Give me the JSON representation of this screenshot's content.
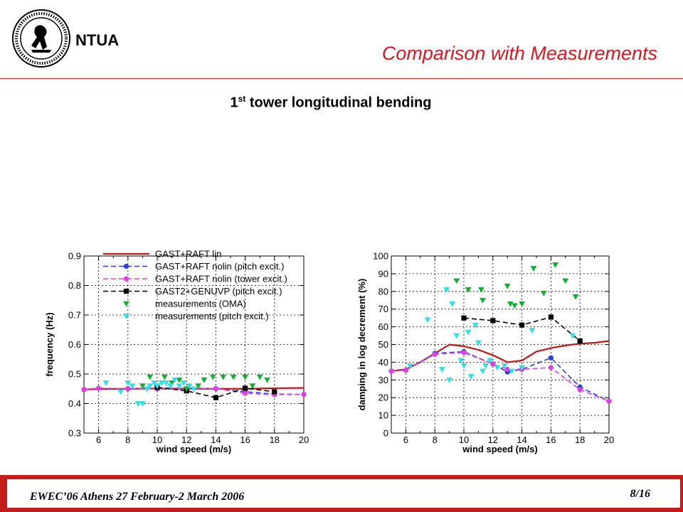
{
  "header": {
    "org": "NTUA",
    "title": "Comparison with Measurements",
    "subtitle_main": "1",
    "subtitle_sup": "st",
    "subtitle_rest": " tower longitudinal bending"
  },
  "footer": {
    "text": "EWEC’06 Athens 27 February-2 March 2006",
    "page": "8/16"
  },
  "colors": {
    "title": "#e0141c",
    "rule": "#c82828",
    "footer_bar": "#c41c18",
    "red_line": "#c41818",
    "blue": "#2a3fd8",
    "magenta": "#e040e0",
    "black": "#000000",
    "green": "#10b030",
    "cyan": "#30e0e8"
  },
  "chart_data": [
    {
      "type": "line",
      "xlabel": "wind speed (m/s)",
      "ylabel": "frequency (Hz)",
      "xlim": [
        5,
        20
      ],
      "ylim": [
        0.3,
        0.9
      ],
      "xticks": [
        6,
        8,
        10,
        12,
        14,
        16,
        18,
        20
      ],
      "yticks": [
        0.3,
        0.4,
        0.5,
        0.6,
        0.7,
        0.8,
        0.9
      ],
      "ytick_labels": [
        "0.3",
        "0.4",
        "0.5",
        "0.6",
        "0.7",
        "0.8",
        "0.9"
      ],
      "grid": true,
      "legend_position": "top",
      "series": [
        {
          "name": "GAST+RAFT lin",
          "kind": "line",
          "color": "#c41818",
          "dash": "",
          "x": [
            5,
            6,
            8,
            10,
            12,
            14,
            16,
            18,
            20
          ],
          "y": [
            0.448,
            0.449,
            0.45,
            0.451,
            0.451,
            0.45,
            0.45,
            0.452,
            0.453
          ]
        },
        {
          "name": "GAST+RAFT nolin (pitch excit.)",
          "kind": "line-marker",
          "marker": "circle",
          "color": "#2a3fd8",
          "dash": "7,4",
          "x": [
            5,
            6,
            8,
            10,
            12,
            14,
            16,
            18,
            20
          ],
          "y": [
            0.447,
            0.452,
            0.45,
            0.45,
            0.448,
            0.45,
            0.44,
            0.432,
            0.431
          ]
        },
        {
          "name": "GAST+RAFT nolin (tower excit.)",
          "kind": "line-marker",
          "marker": "circle",
          "color": "#e040e0",
          "dash": "7,4",
          "x": [
            5,
            6,
            8,
            10,
            12,
            14,
            16,
            18,
            20
          ],
          "y": [
            0.448,
            0.452,
            0.451,
            0.452,
            0.45,
            0.451,
            0.435,
            0.43,
            0.431
          ]
        },
        {
          "name": "GAST2+GENUVP (pitch excit.)",
          "kind": "line-marker",
          "marker": "square",
          "color": "#000000",
          "dash": "7,4",
          "x": [
            10,
            12,
            14,
            16,
            18
          ],
          "y": [
            0.455,
            0.443,
            0.42,
            0.452,
            0.44
          ]
        },
        {
          "name": "measurements (OMA)",
          "kind": "scatter",
          "marker": "triangle",
          "color": "#10b030",
          "x": [
            9.0,
            9.5,
            10.0,
            10.5,
            11.0,
            11.5,
            12.0,
            12.8,
            13.2,
            13.8,
            14.5,
            15.2,
            16.0,
            16.5,
            17.0,
            17.5
          ],
          "y": [
            0.46,
            0.49,
            0.46,
            0.49,
            0.47,
            0.48,
            0.45,
            0.46,
            0.48,
            0.49,
            0.49,
            0.49,
            0.49,
            0.46,
            0.49,
            0.48
          ]
        },
        {
          "name": "measurements (pitch excit.)",
          "kind": "scatter",
          "marker": "triangle",
          "color": "#30e0e8",
          "x": [
            6.5,
            7.5,
            8.0,
            8.3,
            8.7,
            9.0,
            9.3,
            9.5,
            9.8,
            10.0,
            10.3,
            10.6,
            10.9,
            11.2,
            11.5,
            11.8,
            12.2,
            12.5
          ],
          "y": [
            0.47,
            0.44,
            0.47,
            0.46,
            0.4,
            0.4,
            0.45,
            0.46,
            0.47,
            0.46,
            0.47,
            0.47,
            0.46,
            0.48,
            0.46,
            0.47,
            0.46,
            0.45
          ]
        }
      ]
    },
    {
      "type": "line",
      "xlabel": "wind speed (m/s)",
      "ylabel": "damping in log decrement (%)",
      "xlim": [
        5,
        20
      ],
      "ylim": [
        0,
        100
      ],
      "xticks": [
        6,
        8,
        10,
        12,
        14,
        16,
        18,
        20
      ],
      "yticks": [
        0,
        10,
        20,
        30,
        40,
        50,
        60,
        70,
        80,
        90,
        100
      ],
      "ytick_labels": [
        "0",
        "10",
        "20",
        "30",
        "40",
        "50",
        "60",
        "70",
        "80",
        "90",
        "100"
      ],
      "grid": true,
      "series": [
        {
          "name": "GAST+RAFT lin",
          "kind": "line",
          "color": "#c41818",
          "dash": "",
          "x": [
            5,
            6,
            7,
            8,
            9,
            10,
            11,
            12,
            13,
            14,
            15,
            16,
            17,
            18,
            19,
            20
          ],
          "y": [
            35,
            36,
            40,
            45,
            50,
            49,
            47,
            44,
            40,
            41,
            46,
            48,
            49.5,
            50.5,
            51,
            52
          ]
        },
        {
          "name": "GAST+RAFT nolin (pitch excit.)",
          "kind": "line-marker",
          "marker": "circle",
          "color": "#2a3fd8",
          "dash": "7,4",
          "x": [
            5,
            6,
            8,
            10,
            12,
            13,
            14,
            16,
            18,
            20
          ],
          "y": [
            35,
            35.5,
            45,
            46,
            39,
            34.5,
            36,
            42.5,
            26,
            18
          ]
        },
        {
          "name": "GAST+RAFT nolin (tower excit.)",
          "kind": "line-marker",
          "marker": "circle",
          "color": "#e040e0",
          "dash": "7,4",
          "x": [
            5,
            6,
            8,
            10,
            12,
            13,
            14,
            16,
            18,
            20
          ],
          "y": [
            35,
            35.5,
            44.5,
            45.5,
            39,
            36,
            36,
            37,
            24.5,
            18
          ]
        },
        {
          "name": "GAST2+GENUVP (pitch excit.)",
          "kind": "line-marker",
          "marker": "square",
          "color": "#000000",
          "dash": "7,4",
          "x": [
            10,
            12,
            14,
            16,
            18
          ],
          "y": [
            65,
            63.5,
            61,
            65.5,
            52
          ]
        },
        {
          "name": "measurements (OMA)",
          "kind": "scatter",
          "marker": "triangle",
          "color": "#10b030",
          "x": [
            9.5,
            10.3,
            11.2,
            11.3,
            13.0,
            13.2,
            13.5,
            14.0,
            14.8,
            15.5,
            16.3,
            17.0,
            17.7
          ],
          "y": [
            86,
            81,
            81,
            75,
            83,
            73,
            72,
            73,
            93,
            79,
            95,
            86,
            77
          ]
        },
        {
          "name": "measurements (pitch excit.)",
          "kind": "scatter",
          "marker": "triangle",
          "color": "#30e0e8",
          "x": [
            6.3,
            7.5,
            8.5,
            8.8,
            9.0,
            9.2,
            9.5,
            9.8,
            10.0,
            10.3,
            10.5,
            10.8,
            11.0,
            11.3,
            11.5,
            11.8,
            12.3,
            12.8,
            13.3,
            14.0,
            14.7,
            17.5
          ],
          "y": [
            38,
            64,
            36,
            81,
            30,
            73,
            55,
            41,
            38,
            57,
            32,
            61,
            51,
            35,
            38,
            41,
            37,
            38,
            35,
            37,
            58,
            55
          ]
        }
      ]
    }
  ]
}
